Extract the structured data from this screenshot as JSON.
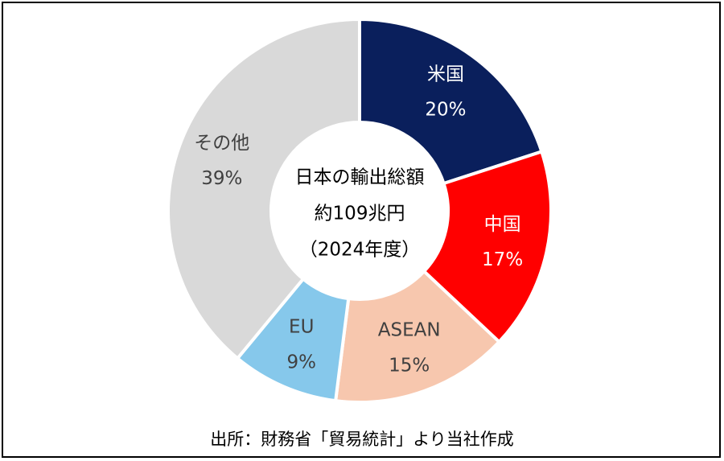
{
  "chart_data": {
    "type": "pie",
    "variant": "donut",
    "center_text": [
      "日本の輸出総額",
      "約109兆円",
      "（2024年度）"
    ],
    "slices": [
      {
        "label": "米国",
        "value": 20,
        "value_label": "20%",
        "color": "#0A1F5C",
        "text_color": "#ffffff"
      },
      {
        "label": "中国",
        "value": 17,
        "value_label": "17%",
        "color": "#FF0000",
        "text_color": "#ffffff"
      },
      {
        "label": "ASEAN",
        "value": 15,
        "value_label": "15%",
        "color": "#F7C7AE",
        "text_color": "#404040"
      },
      {
        "label": "EU",
        "value": 9,
        "value_label": "9%",
        "color": "#86C8EB",
        "text_color": "#404040"
      },
      {
        "label": "その他",
        "value": 39,
        "value_label": "39%",
        "color": "#D9D9D9",
        "text_color": "#404040"
      }
    ]
  },
  "source_note": "出所：財務省「貿易統計」より当社作成"
}
